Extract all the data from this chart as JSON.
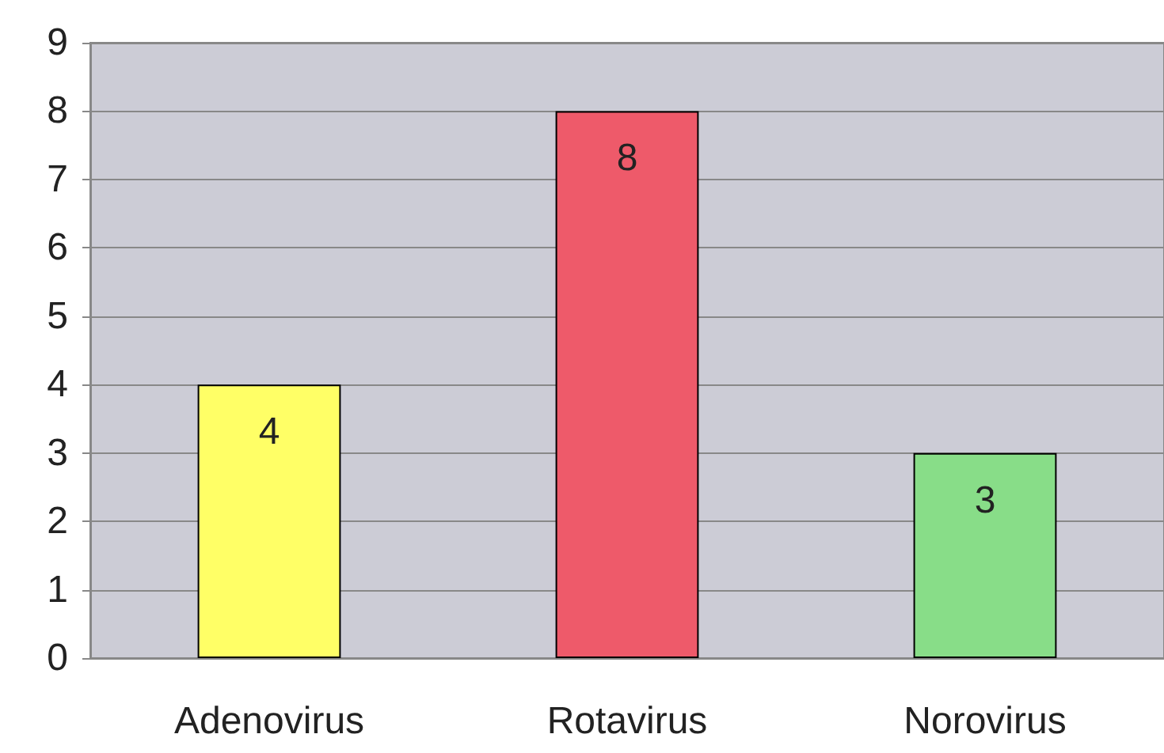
{
  "chart_data": {
    "type": "bar",
    "categories": [
      "Adenovirus",
      "Rotavirus",
      "Norovirus"
    ],
    "values": [
      4,
      8,
      3
    ],
    "colors": [
      "#ffff66",
      "#ee5a6a",
      "#88dd88"
    ],
    "ylim": [
      0,
      9
    ],
    "yticks": [
      0,
      1,
      2,
      3,
      4,
      5,
      6,
      7,
      8,
      9
    ],
    "grid": "y",
    "data_labels": true
  }
}
